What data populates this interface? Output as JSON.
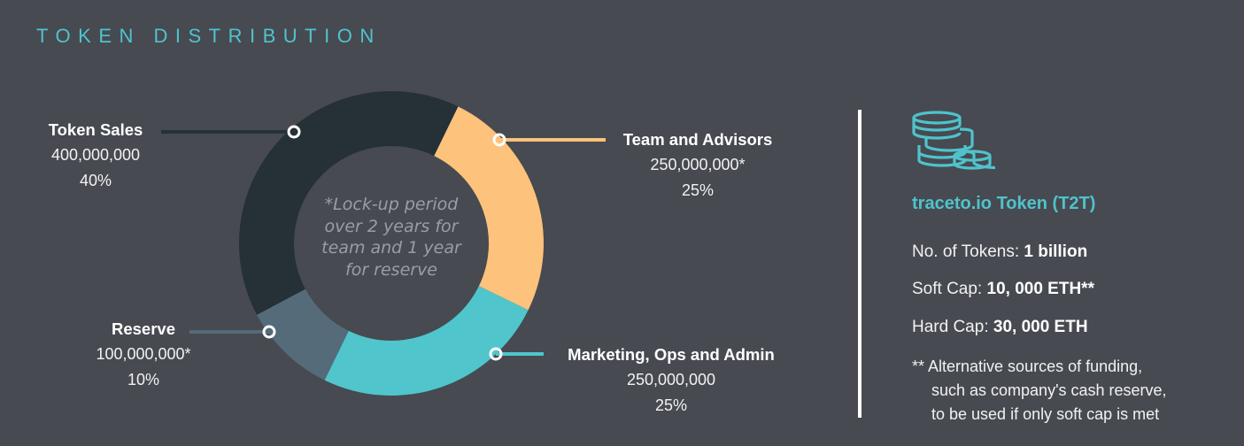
{
  "header": {
    "title": "TOKEN DISTRIBUTION"
  },
  "chart_data": {
    "type": "pie",
    "variant": "donut",
    "categories": [
      "Token Sales",
      "Team and Advisors",
      "Marketing, Ops and Admin",
      "Reserve"
    ],
    "values": [
      40,
      25,
      25,
      10
    ],
    "amounts": [
      "400,000,000",
      "250,000,000*",
      "250,000,000",
      "100,000,000*"
    ],
    "percent_labels": [
      "40%",
      "25%",
      "25%",
      "10%"
    ],
    "colors": [
      "#263037",
      "#fdc27b",
      "#50c5cc",
      "#556b7a"
    ],
    "center_note": "*Lock-up period over 2 years for team and 1 year for reserve",
    "legend_position": "around"
  },
  "info": {
    "token_title": "traceto.io Token (T2T)",
    "tokens_label": "No. of Tokens:",
    "tokens_value": "1 billion",
    "softcap_label": "Soft Cap:",
    "softcap_value": "10, 000 ETH**",
    "hardcap_label": "Hard Cap:",
    "hardcap_value": "30, 000 ETH",
    "footnote_line1": "** Alternative sources of funding,",
    "footnote_line2": "such as company's cash reserve,",
    "footnote_line3": "to be used if only soft cap is met"
  },
  "icons": {
    "token": "coin-stack-icon"
  },
  "colors": {
    "accent": "#4fc3cc",
    "background": "#474a51"
  }
}
